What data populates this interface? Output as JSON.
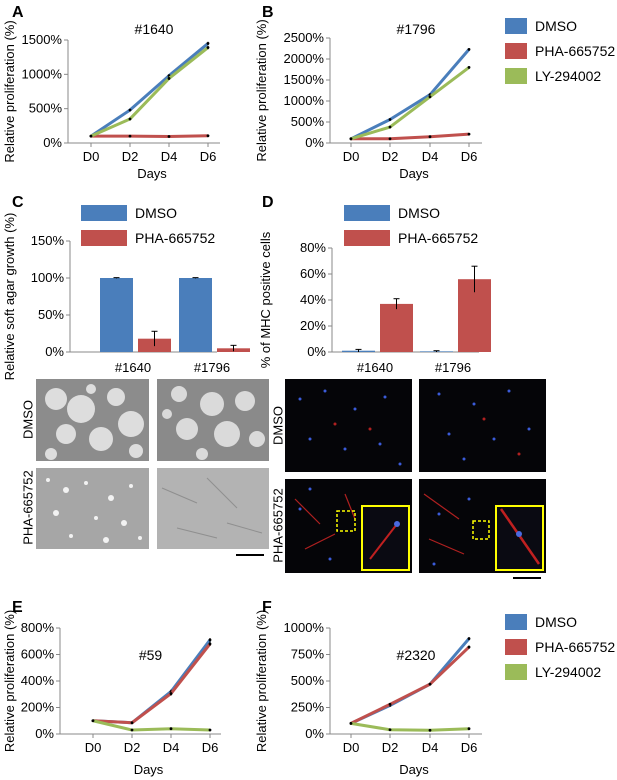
{
  "figure": {
    "panel_labels": [
      "A",
      "B",
      "C",
      "D",
      "E",
      "F"
    ],
    "colors": {
      "dmso": "#4a7ebb",
      "pha": "#c0504d",
      "ly": "#9bbb59",
      "scalebar": "#000000",
      "inset": "#ffff00"
    }
  },
  "chart_data": [
    {
      "id": "A",
      "type": "line",
      "title": "#1640",
      "xlabel": "Days",
      "ylabel": "Relative proliferation (%)",
      "categories": [
        "D0",
        "D2",
        "D4",
        "D6"
      ],
      "ylim": [
        0,
        1500
      ],
      "yticks": [
        0,
        500,
        1000,
        1500
      ],
      "ytick_labels": [
        "0%",
        "500%",
        "1000%",
        "1500%"
      ],
      "series": [
        {
          "name": "DMSO",
          "color": "#4a7ebb",
          "values": [
            100,
            480,
            980,
            1450
          ],
          "err": [
            5,
            15,
            20,
            25
          ]
        },
        {
          "name": "PHA-665752",
          "color": "#c0504d",
          "values": [
            100,
            100,
            95,
            105
          ],
          "err": [
            3,
            3,
            3,
            4
          ]
        },
        {
          "name": "LY-294002",
          "color": "#9bbb59",
          "values": [
            100,
            350,
            940,
            1390
          ],
          "err": [
            5,
            15,
            20,
            25
          ]
        }
      ],
      "legend": [
        "DMSO",
        "PHA-665752",
        "LY-294002"
      ]
    },
    {
      "id": "B",
      "type": "line",
      "title": "#1796",
      "xlabel": "Days",
      "ylabel": "Relative proliferation (%)",
      "categories": [
        "D0",
        "D2",
        "D4",
        "D6"
      ],
      "ylim": [
        0,
        2500
      ],
      "yticks": [
        0,
        500,
        1000,
        1500,
        2000,
        2500
      ],
      "ytick_labels": [
        "0%",
        "500%",
        "1000%",
        "1500%",
        "2000%",
        "2500%"
      ],
      "series": [
        {
          "name": "DMSO",
          "color": "#4a7ebb",
          "values": [
            100,
            560,
            1150,
            2230
          ],
          "err": [
            5,
            20,
            30,
            30
          ]
        },
        {
          "name": "PHA-665752",
          "color": "#c0504d",
          "values": [
            100,
            100,
            150,
            210
          ],
          "err": [
            3,
            3,
            5,
            8
          ]
        },
        {
          "name": "LY-294002",
          "color": "#9bbb59",
          "values": [
            100,
            380,
            1100,
            1800
          ],
          "err": [
            5,
            20,
            30,
            30
          ]
        }
      ]
    },
    {
      "id": "C",
      "type": "bar",
      "ylabel": "Relative soft agar growth (%)",
      "categories": [
        "#1640",
        "#1796"
      ],
      "ylim": [
        0,
        150
      ],
      "yticks": [
        0,
        50,
        100,
        150
      ],
      "ytick_labels": [
        "0%",
        "50%",
        "100%",
        "150%"
      ],
      "series": [
        {
          "name": "DMSO",
          "color": "#4a7ebb",
          "values": [
            100,
            100
          ],
          "err": [
            0.5,
            0.5
          ]
        },
        {
          "name": "PHA-665752",
          "color": "#c0504d",
          "values": [
            18,
            5
          ],
          "err": [
            10,
            4
          ]
        }
      ],
      "legend": [
        "DMSO",
        "PHA-665752"
      ]
    },
    {
      "id": "D",
      "type": "bar",
      "ylabel": "% of MHC positive cells",
      "categories": [
        "#1640",
        "#1796"
      ],
      "ylim": [
        0,
        80
      ],
      "yticks": [
        0,
        20,
        40,
        60,
        80
      ],
      "ytick_labels": [
        "0%",
        "20%",
        "40%",
        "60%",
        "80%"
      ],
      "series": [
        {
          "name": "DMSO",
          "color": "#4a7ebb",
          "values": [
            1,
            0.5
          ],
          "err": [
            1,
            0.5
          ]
        },
        {
          "name": "PHA-665752",
          "color": "#c0504d",
          "values": [
            37,
            56
          ],
          "err": [
            4,
            10
          ]
        }
      ],
      "legend": [
        "DMSO",
        "PHA-665752"
      ]
    },
    {
      "id": "E",
      "type": "line",
      "title": "#59",
      "xlabel": "Days",
      "ylabel": "Relative proliferation (%)",
      "categories": [
        "D0",
        "D2",
        "D4",
        "D6"
      ],
      "ylim": [
        0,
        800
      ],
      "yticks": [
        0,
        200,
        400,
        600,
        800
      ],
      "ytick_labels": [
        "0%",
        "200%",
        "400%",
        "600%",
        "800%"
      ],
      "series": [
        {
          "name": "DMSO",
          "color": "#4a7ebb",
          "values": [
            100,
            85,
            320,
            710
          ],
          "err": [
            3,
            5,
            15,
            15
          ]
        },
        {
          "name": "PHA-665752",
          "color": "#c0504d",
          "values": [
            100,
            85,
            305,
            680
          ],
          "err": [
            3,
            5,
            15,
            15
          ]
        },
        {
          "name": "LY-294002",
          "color": "#9bbb59",
          "values": [
            100,
            30,
            40,
            30
          ],
          "err": [
            3,
            3,
            3,
            3
          ]
        }
      ]
    },
    {
      "id": "F",
      "type": "line",
      "title": "#2320",
      "xlabel": "Days",
      "ylabel": "Relative proliferation (%)",
      "categories": [
        "D0",
        "D2",
        "D4",
        "D6"
      ],
      "ylim": [
        0,
        1000
      ],
      "yticks": [
        0,
        250,
        500,
        750,
        1000
      ],
      "ytick_labels": [
        "0%",
        "250%",
        "500%",
        "750%",
        "1000%"
      ],
      "series": [
        {
          "name": "DMSO",
          "color": "#4a7ebb",
          "values": [
            100,
            270,
            470,
            900
          ],
          "err": [
            3,
            10,
            10,
            15
          ]
        },
        {
          "name": "PHA-665752",
          "color": "#c0504d",
          "values": [
            100,
            280,
            470,
            820
          ],
          "err": [
            3,
            10,
            10,
            15
          ]
        },
        {
          "name": "LY-294002",
          "color": "#9bbb59",
          "values": [
            100,
            40,
            35,
            50
          ],
          "err": [
            3,
            3,
            3,
            3
          ]
        }
      ],
      "legend": [
        "DMSO",
        "PHA-665752",
        "LY-294002"
      ]
    }
  ],
  "micrographs": {
    "c_row_labels": [
      "DMSO",
      "PHA-665752"
    ],
    "d_row_labels": [
      "DMSO",
      "PHA-665752"
    ]
  }
}
